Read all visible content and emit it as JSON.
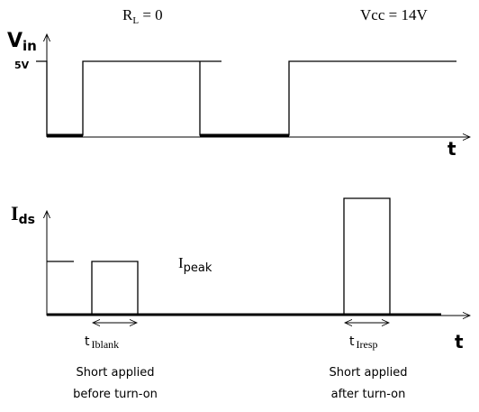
{
  "top_plot": {
    "y_label": {
      "main": "V",
      "sub": "in"
    },
    "level_label": "5V",
    "x_label": "t",
    "condition_load": {
      "main": "R",
      "sub": "L",
      "rest": " = 0"
    },
    "condition_supply": "Vcc = 14V"
  },
  "bottom_plot": {
    "y_label": {
      "main": "I",
      "sub": "ds"
    },
    "x_label": "t",
    "peak_label": {
      "main": "I",
      "sub": "peak"
    },
    "blank_label": {
      "main": "t",
      "sub": "Iblank"
    },
    "resp_label": {
      "main": "t",
      "sub": "Iresp"
    }
  },
  "captions": [
    {
      "line1": "Short applied",
      "line2": "before turn-on"
    },
    {
      "line1": "Short applied",
      "line2": "after turn-on"
    }
  ]
}
